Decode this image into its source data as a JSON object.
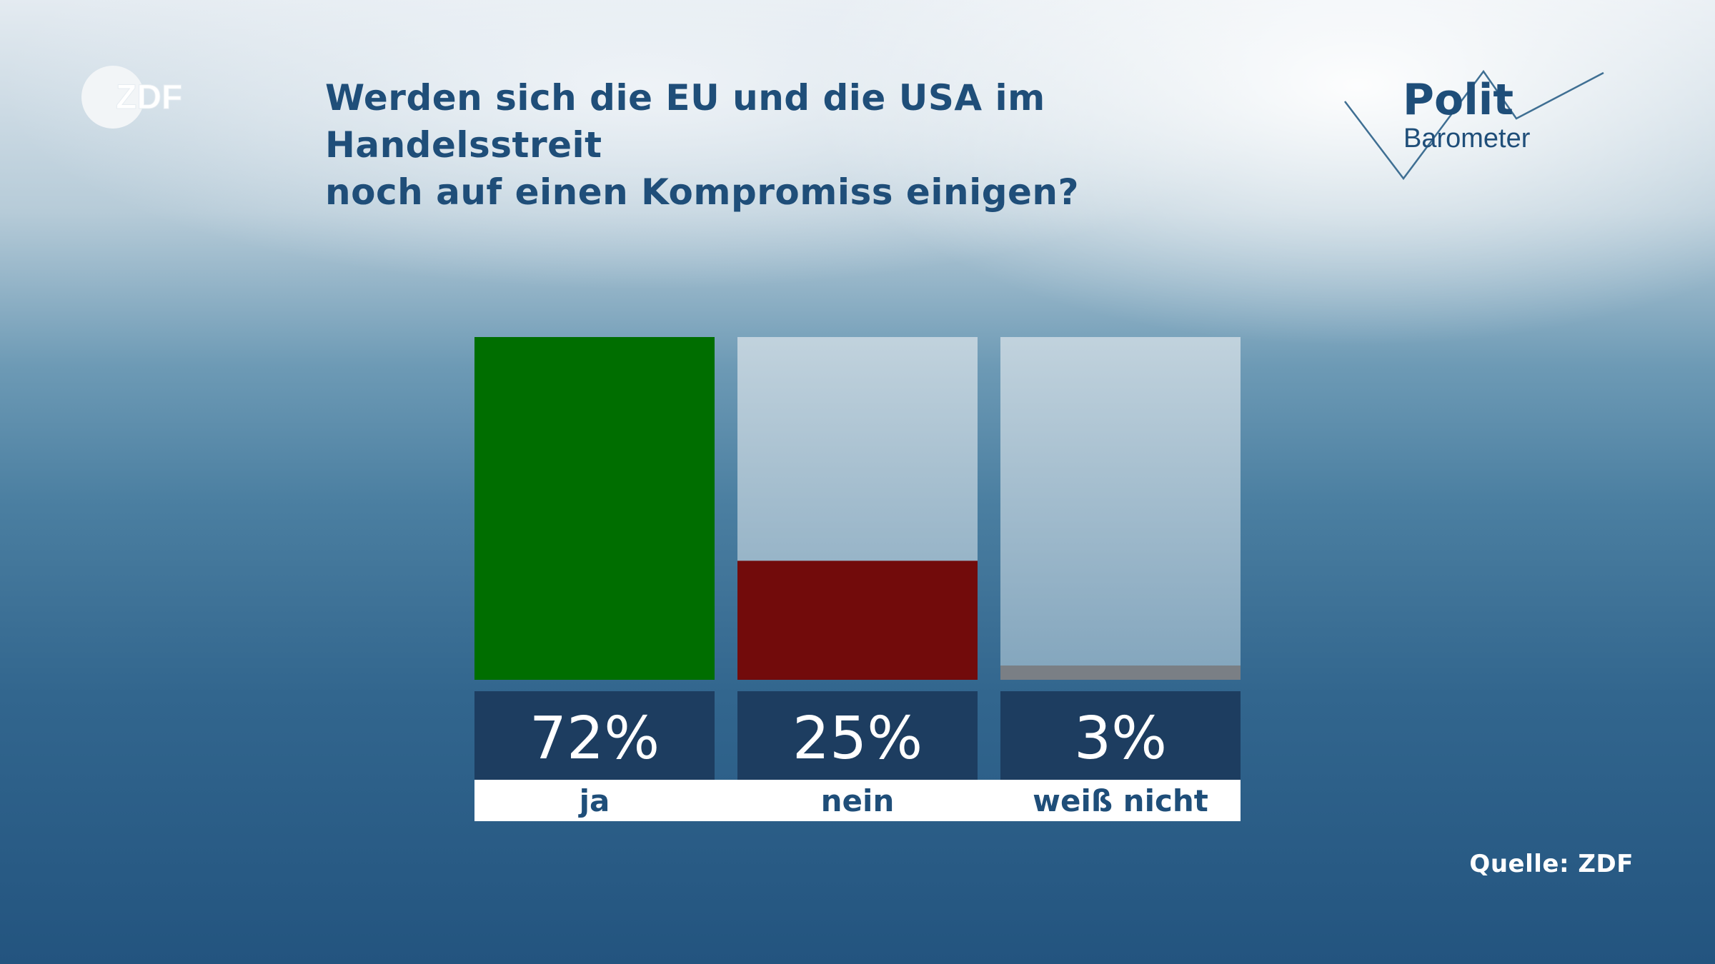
{
  "header": {
    "title_line1": "Werden sich die EU und die USA im Handelsstreit",
    "title_line2": "noch auf einen Kompromiss einigen?"
  },
  "logos": {
    "zdf_text": "ZDF",
    "polit_word": "Polit",
    "barometer_word": "Barometer"
  },
  "chart_data": {
    "type": "bar",
    "title": "Werden sich die EU und die USA im Handelsstreit noch auf einen Kompromiss einigen?",
    "categories": [
      "ja",
      "nein",
      "weiß nicht"
    ],
    "values": [
      72,
      25,
      3
    ],
    "value_labels": [
      "72%",
      "25%",
      "3%"
    ],
    "unit": "%",
    "ylim": [
      0,
      72
    ],
    "colors": [
      "#006e00",
      "#720b0b",
      "#7a7f85"
    ],
    "background_bar_color": "#c3d2dd",
    "label_box_color": "#1d3d60",
    "grid": false,
    "legend": "none"
  },
  "footer": {
    "source": "Quelle: ZDF"
  }
}
